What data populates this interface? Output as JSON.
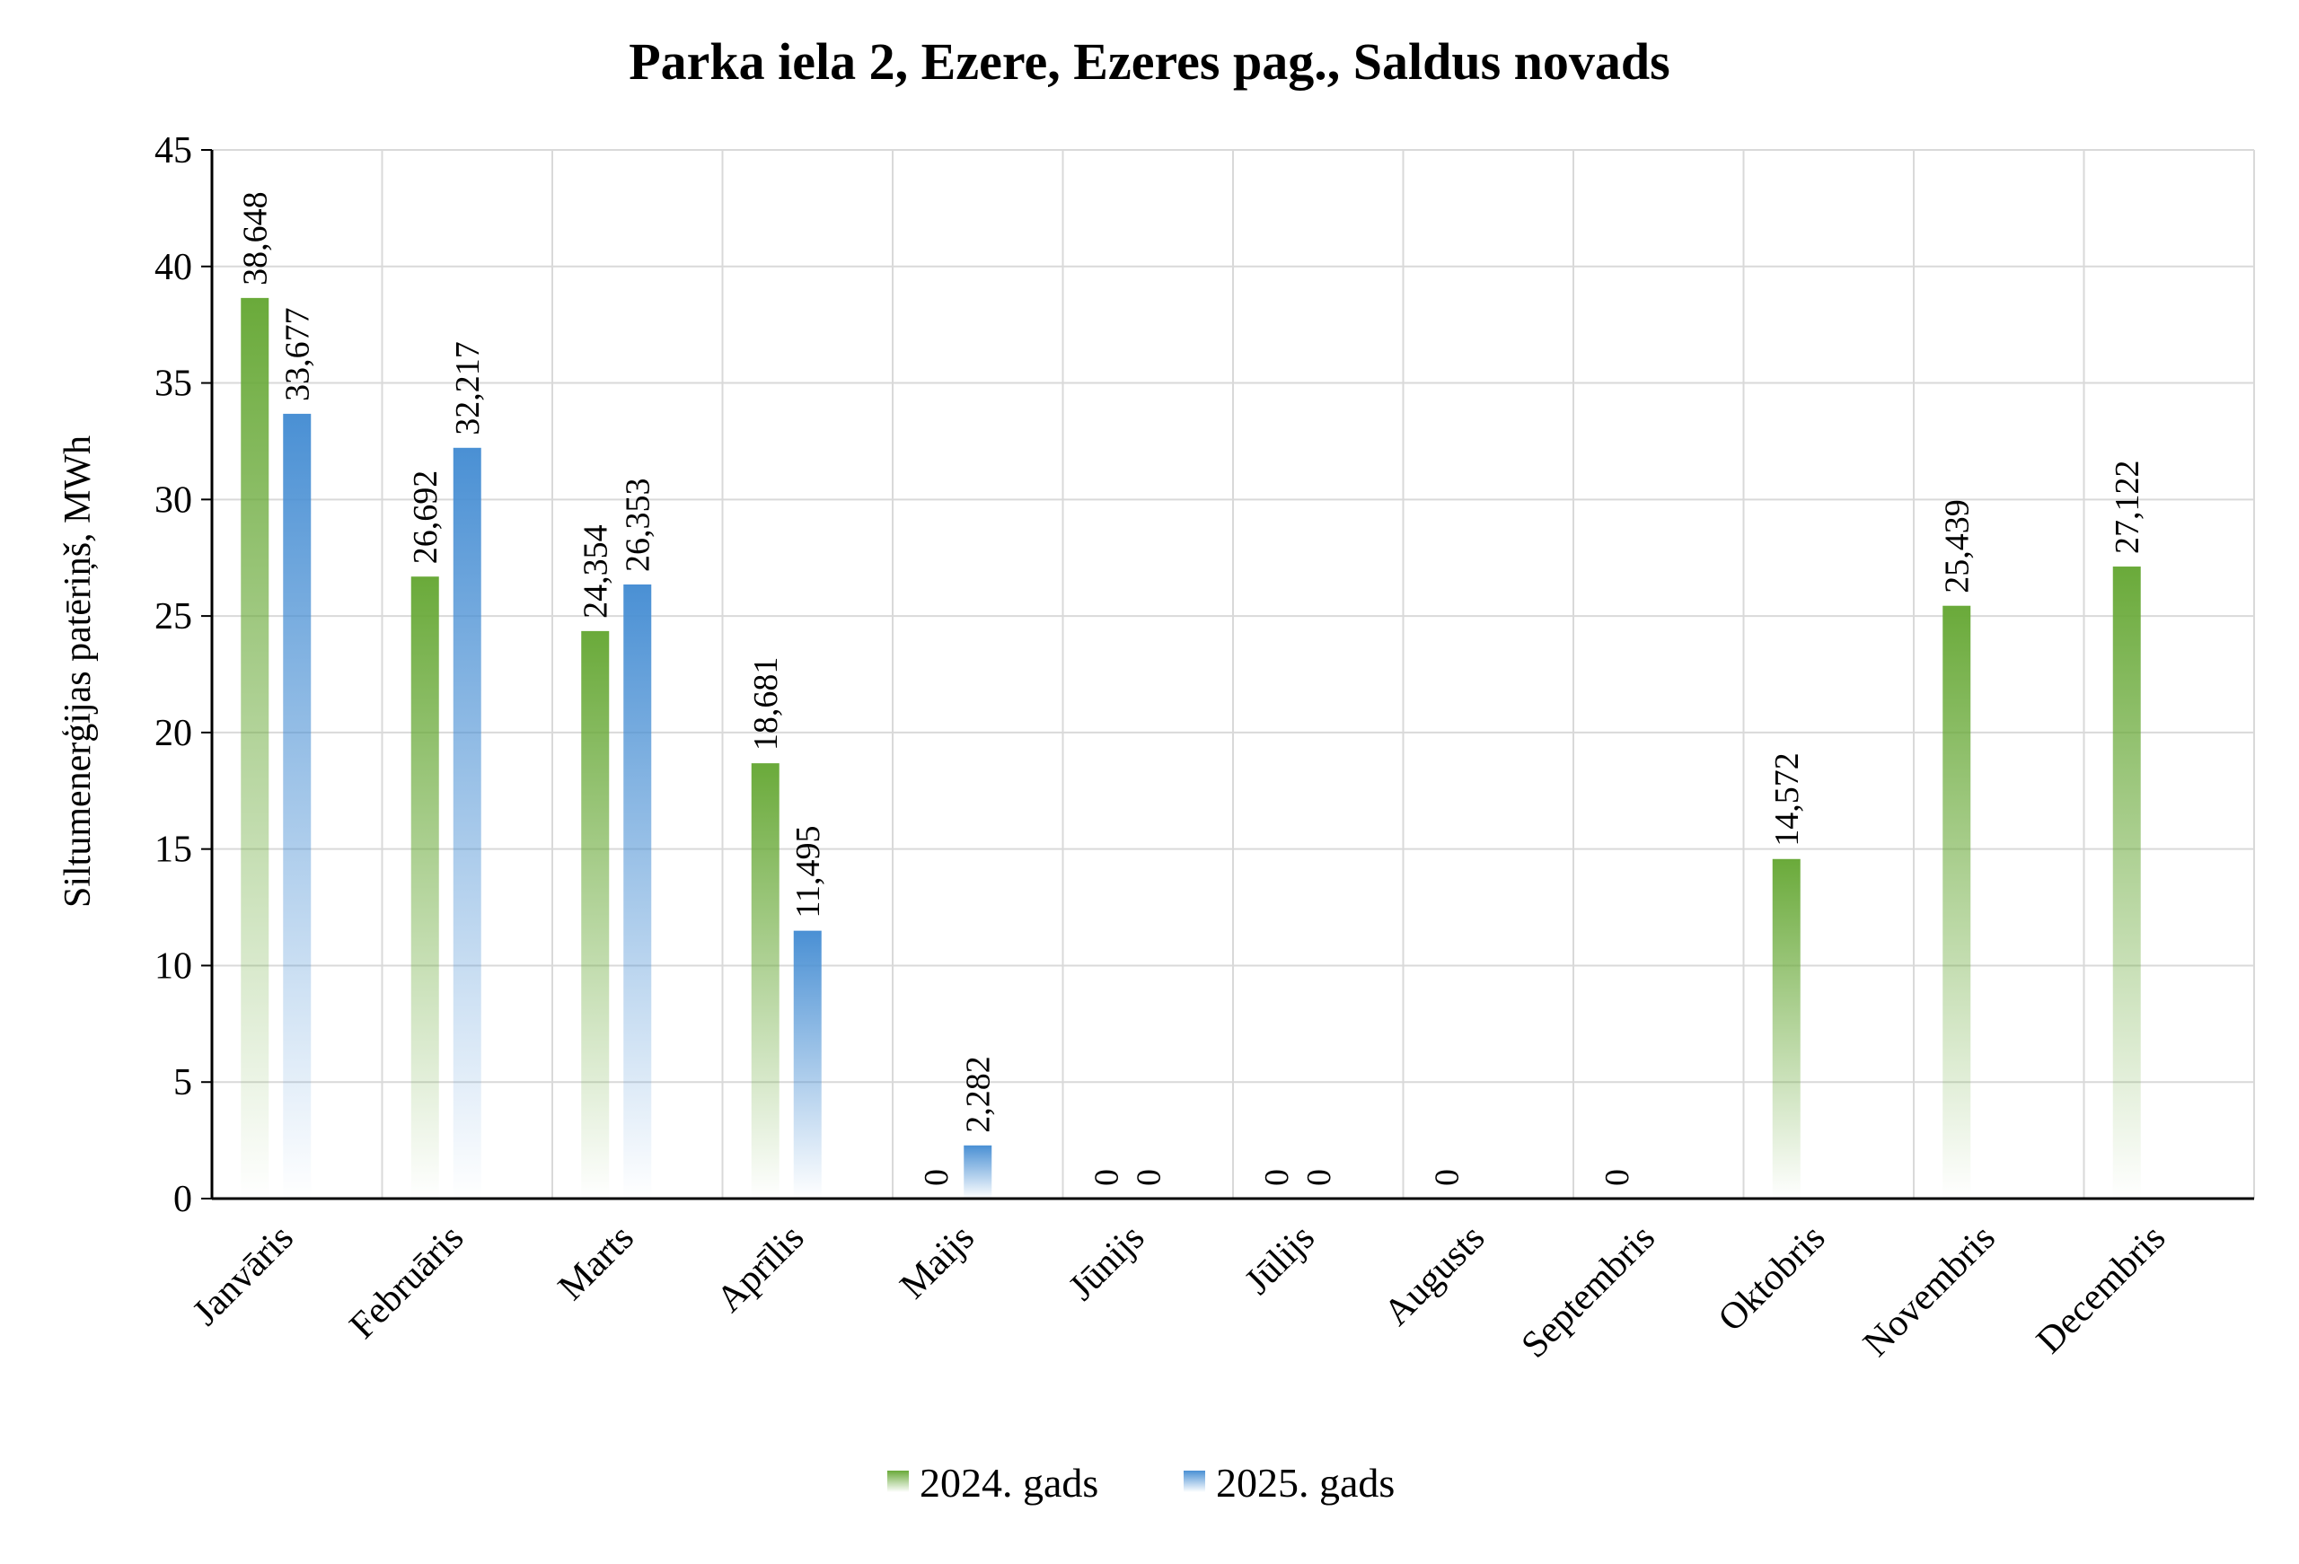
{
  "chart_data": {
    "type": "bar",
    "title": "Parka iela 2, Ezere, Ezeres pag., Saldus novads",
    "ylabel": "Siltumenerģijas patēriņš, MWh",
    "xlabel": "",
    "ylim": [
      0,
      45
    ],
    "yticks": [
      0,
      5,
      10,
      15,
      20,
      25,
      30,
      35,
      40,
      45
    ],
    "grid": true,
    "legend_position": "bottom",
    "categories": [
      "Janvāris",
      "Februāris",
      "Marts",
      "Aprīlis",
      "Maijs",
      "Jūnijs",
      "Jūlijs",
      "Augusts",
      "Septembris",
      "Oktobris",
      "Novembris",
      "Decembris"
    ],
    "series": [
      {
        "name": "2024. gads",
        "color": "#6aaa3a",
        "values": [
          38.648,
          26.692,
          24.354,
          18.681,
          0,
          0,
          0,
          0,
          0,
          14.572,
          25.439,
          27.122
        ],
        "labels": [
          "38,648",
          "26,692",
          "24,354",
          "18,681",
          "0",
          "0",
          "0",
          "0",
          "0",
          "14,572",
          "25,439",
          "27,122"
        ]
      },
      {
        "name": "2025. gads",
        "color": "#4a90d4",
        "values": [
          33.677,
          32.217,
          26.353,
          11.495,
          2.282,
          0,
          0,
          null,
          null,
          null,
          null,
          null
        ],
        "labels": [
          "33,677",
          "32,217",
          "26,353",
          "11,495",
          "2,282",
          "0",
          "0",
          "",
          "",
          "",
          "",
          ""
        ]
      }
    ]
  }
}
